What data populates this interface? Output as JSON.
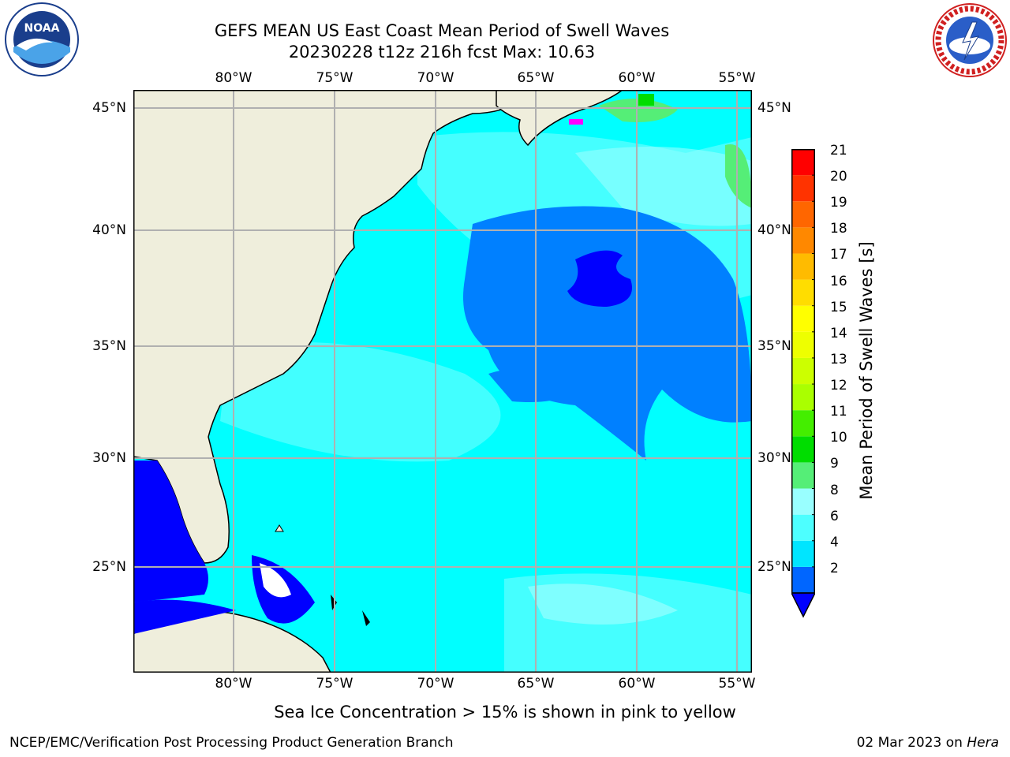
{
  "title": {
    "line1": "GEFS MEAN US East Coast Mean Period of Swell Waves",
    "line2": "20230228 t12z 216h fcst   Max: 10.63"
  },
  "map": {
    "lon_labels": [
      "80°W",
      "75°W",
      "70°W",
      "65°W",
      "60°W",
      "55°W"
    ],
    "lat_labels": [
      "45°N",
      "40°N",
      "35°N",
      "30°N",
      "25°N"
    ],
    "colors": {
      "land": "#efeedc",
      "ocean_cyan": "#00ffff",
      "ocean_light": "#4dffff",
      "ocean_dark": "#0080ff",
      "deep_blue": "#0000ff",
      "gridline": "#b0b0b0"
    }
  },
  "colorbar": {
    "title": "Mean Period of Swell Waves [s]",
    "tick_labels": [
      "21",
      "20",
      "19",
      "18",
      "17",
      "16",
      "15",
      "14",
      "13",
      "12",
      "11",
      "10",
      "9",
      "8",
      "6",
      "4",
      "2"
    ],
    "colors": [
      "#0066ff",
      "#00e5ff",
      "#4dffff",
      "#99ffff",
      "#55ee77",
      "#00dd00",
      "#44ee00",
      "#aaff00",
      "#ccff00",
      "#eeff00",
      "#ffff00",
      "#ffdd00",
      "#ffbb00",
      "#ff8800",
      "#ff6600",
      "#ff3300",
      "#ff0000"
    ],
    "extend_color": "#0000ff"
  },
  "footer": {
    "note": "Sea Ice Concentration > 15% is shown in pink to yellow",
    "branch": "NCEP/EMC/Verification Post Processing Product Generation Branch",
    "date": "02 Mar 2023 on",
    "host": "Hera"
  },
  "logos": {
    "left": "noaa-logo",
    "right": "nws-logo"
  }
}
